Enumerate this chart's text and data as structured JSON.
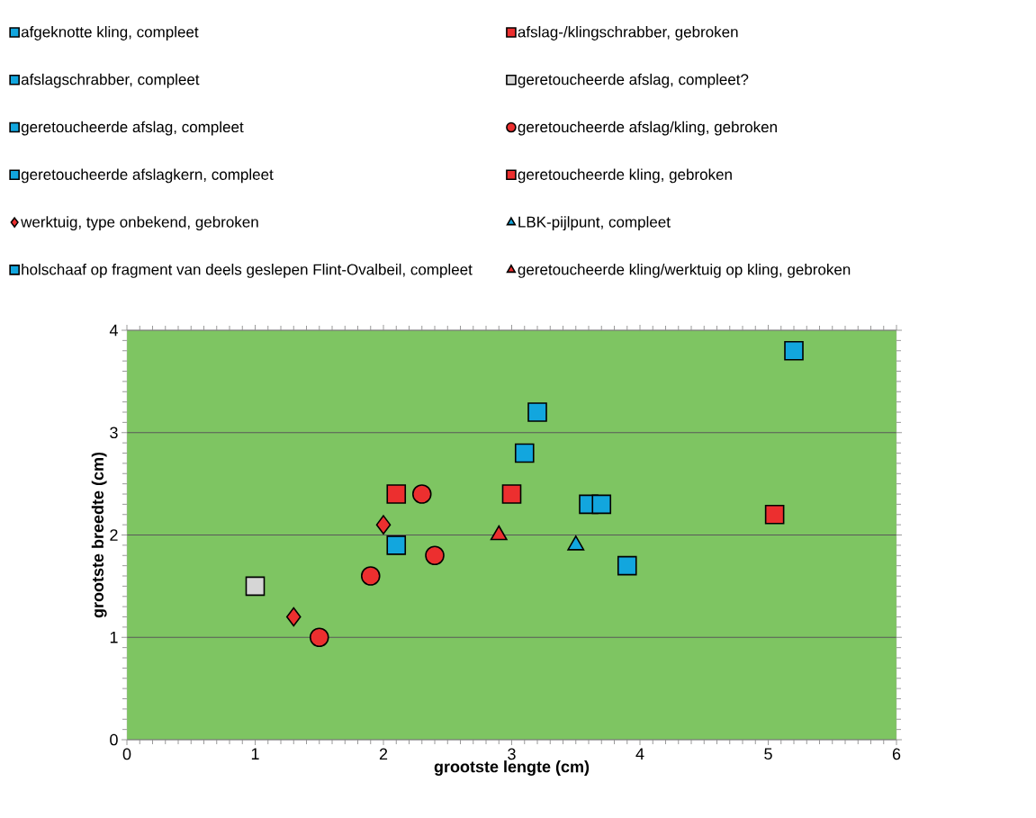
{
  "chart_data": {
    "type": "scatter",
    "xlabel": "grootste lengte (cm)",
    "ylabel": "grootste breedte (cm)",
    "xlim": [
      0,
      6
    ],
    "ylim": [
      0,
      4
    ],
    "xticks": [
      0,
      1,
      2,
      3,
      4,
      5,
      6
    ],
    "yticks": [
      0,
      1,
      2,
      3,
      4
    ],
    "grid": "y",
    "legend": "top",
    "series": [
      {
        "name": "afgeknotte kling, compleet",
        "color": "#12a6de",
        "marker": "square",
        "x": [
          3.9
        ],
        "values": [
          1.7
        ]
      },
      {
        "name": "afslag-/klingschrabber, gebroken",
        "color": "#ec2f2f",
        "marker": "square",
        "x": [
          2.1,
          3.0
        ],
        "values": [
          2.4,
          2.4
        ]
      },
      {
        "name": "afslagschrabber, compleet",
        "color": "#12a6de",
        "marker": "square",
        "x": [
          3.1,
          3.6
        ],
        "values": [
          2.8,
          2.3
        ]
      },
      {
        "name": "geretoucheerde afslag, compleet?",
        "color": "#d6d6d6",
        "marker": "square",
        "x": [
          1.0
        ],
        "values": [
          1.5
        ]
      },
      {
        "name": "geretoucheerde afslag, compleet",
        "color": "#12a6de",
        "marker": "square",
        "x": [
          2.1,
          3.7
        ],
        "values": [
          1.9,
          2.3
        ]
      },
      {
        "name": "geretoucheerde afslag/kling, gebroken",
        "color": "#ec2f2f",
        "marker": "circle",
        "x": [
          1.5,
          1.9,
          2.3,
          2.4
        ],
        "values": [
          1.0,
          1.6,
          2.4,
          1.8
        ]
      },
      {
        "name": "geretoucheerde afslagkern, compleet",
        "color": "#12a6de",
        "marker": "square",
        "x": [
          3.2
        ],
        "values": [
          3.2
        ]
      },
      {
        "name": "geretoucheerde kling, gebroken",
        "color": "#ec2f2f",
        "marker": "square",
        "x": [
          5.05
        ],
        "values": [
          2.2
        ]
      },
      {
        "name": "werktuig, type onbekend, gebroken",
        "color": "#ec2f2f",
        "marker": "diamond",
        "x": [
          1.3,
          2.0
        ],
        "values": [
          1.2,
          2.1
        ]
      },
      {
        "name": "LBK-pijlpunt, compleet",
        "color": "#12a6de",
        "marker": "triangle",
        "x": [
          3.5
        ],
        "values": [
          1.9
        ]
      },
      {
        "name": "holschaaf op fragment van deels geslepen Flint-Ovalbeil, compleet",
        "color": "#12a6de",
        "marker": "square",
        "x": [
          5.2
        ],
        "values": [
          3.8
        ]
      },
      {
        "name": "geretoucheerde kling/werktuig op kling, gebroken",
        "color": "#ec2f2f",
        "marker": "triangle",
        "x": [
          2.9
        ],
        "values": [
          2.0
        ]
      }
    ]
  }
}
